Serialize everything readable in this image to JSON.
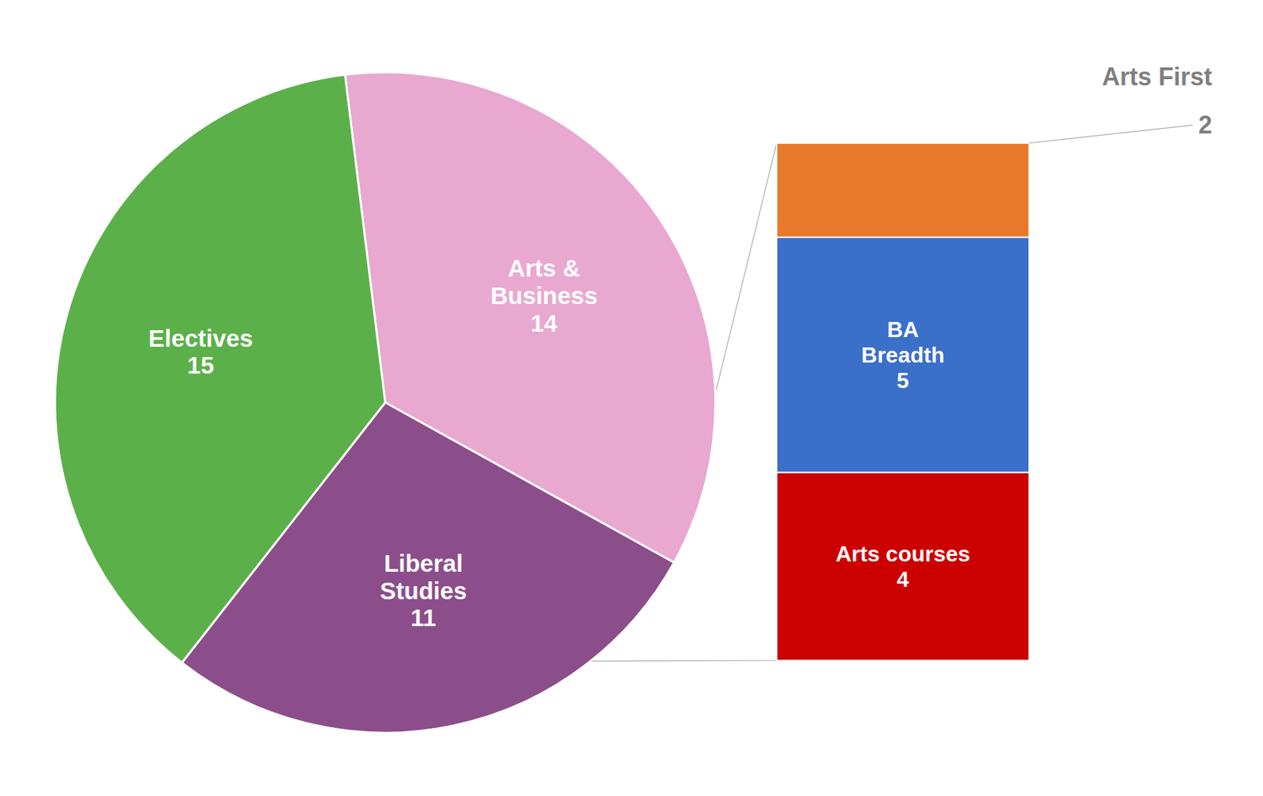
{
  "chart_data": [
    {
      "type": "pie",
      "categories": [
        "Arts &\nBusiness",
        "Liberal\nStudies",
        "Electives"
      ],
      "values": [
        14,
        11,
        15
      ],
      "colors": [
        "#e8a8d0",
        "#8c4e8a",
        "#5bb04a"
      ],
      "data_labels": true
    },
    {
      "type": "bar",
      "stacked": true,
      "categories": [
        null
      ],
      "series": [
        {
          "name": "Arts courses",
          "color": "#cc0000",
          "values": [
            4
          ]
        },
        {
          "name": "BA\nBreadth",
          "color": "#3a6fca",
          "values": [
            5
          ]
        },
        {
          "name": "Arts First",
          "color": "#e8792a",
          "values": [
            2
          ]
        }
      ],
      "data_labels": true,
      "tick_labels": false
    }
  ]
}
